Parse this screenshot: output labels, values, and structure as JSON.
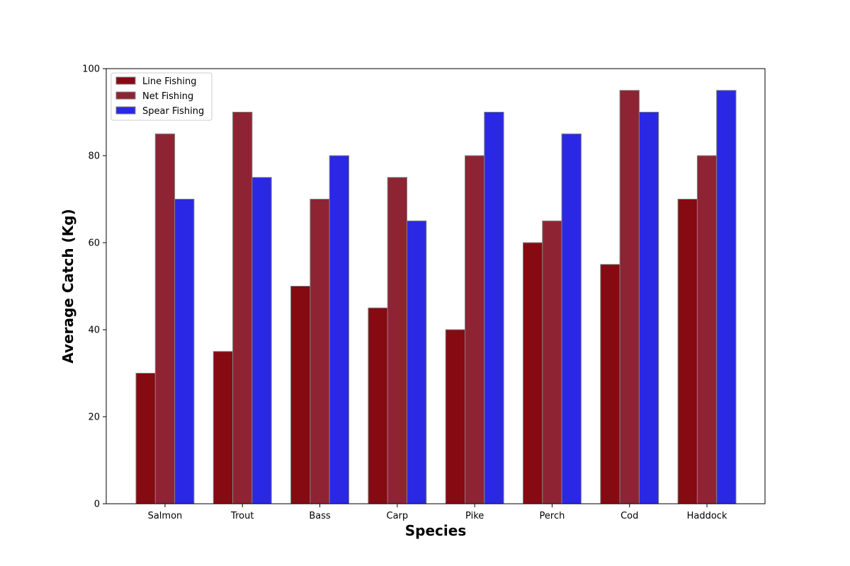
{
  "chart_data": {
    "type": "bar",
    "title": "",
    "xlabel": "Species",
    "ylabel": "Average Catch (Kg)",
    "categories": [
      "Salmon",
      "Trout",
      "Bass",
      "Carp",
      "Pike",
      "Perch",
      "Cod",
      "Haddock"
    ],
    "ylim": [
      0,
      100
    ],
    "yticks": [
      0,
      20,
      40,
      60,
      80,
      100
    ],
    "grid": false,
    "legend_position": "top-left",
    "series": [
      {
        "name": "Line Fishing",
        "color": "#850a12",
        "values": [
          30,
          35,
          50,
          45,
          40,
          60,
          55,
          70
        ]
      },
      {
        "name": "Net Fishing",
        "color": "#8e2433",
        "values": [
          85,
          90,
          70,
          75,
          80,
          65,
          95,
          80
        ]
      },
      {
        "name": "Spear Fishing",
        "color": "#2a28e4",
        "values": [
          70,
          75,
          80,
          65,
          90,
          85,
          90,
          95
        ]
      }
    ],
    "bar_edge_color": "#808080"
  }
}
